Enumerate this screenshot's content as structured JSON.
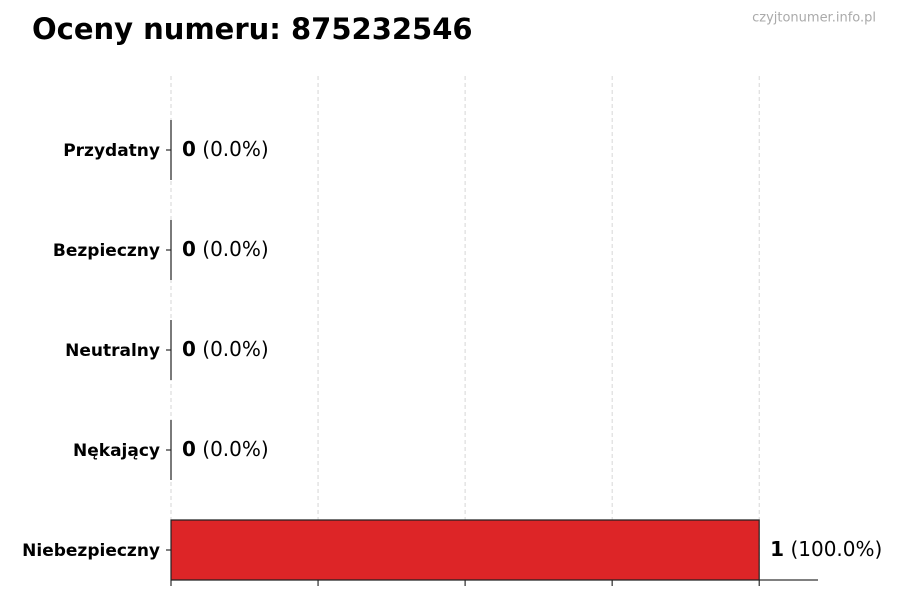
{
  "chart_data": {
    "type": "hbar",
    "title": "Oceny numeru: 875232546",
    "watermark": "czyjtonumer.info.pl",
    "categories": [
      "Przydatny",
      "Bezpieczny",
      "Neutralny",
      "Nękający",
      "Niebezpieczny"
    ],
    "values": [
      0,
      0,
      0,
      0,
      1
    ],
    "color": "#dd2527",
    "shares": {
      "values": [
        0,
        0,
        0,
        0,
        100
      ],
      "value_labels": [
        "(0.0%)",
        "(0.0%)",
        "(0.0%)",
        "(0.0%)",
        "(100.0%)"
      ]
    },
    "xlim": [
      0,
      1.1
    ],
    "xticks": [
      0,
      0.25,
      0.5,
      0.75,
      1
    ],
    "grid": true
  }
}
